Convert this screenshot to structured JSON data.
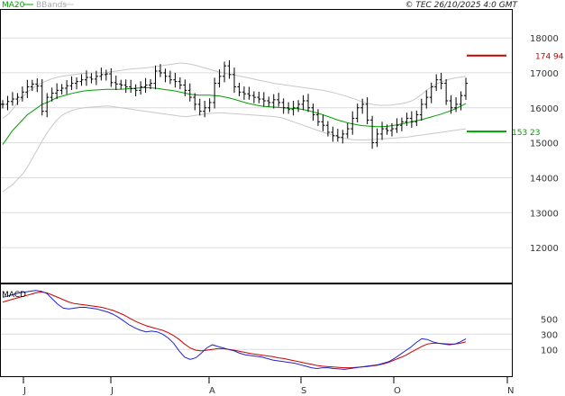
{
  "header": {
    "legend_ma": "MA20",
    "legend_bb": "BBands",
    "copyright": "© TEC 26/10/2025 4:0 GMT"
  },
  "colors": {
    "ma": "#00a000",
    "bbands": "#c8c8c8",
    "bars": "#000000",
    "grid": "#dcdcdc",
    "tag_high": "#cc0000",
    "tag_low": "#00a000",
    "macd_line": "#2222cc",
    "signal_line": "#cc0000"
  },
  "chart_data": [
    {
      "type": "line",
      "title": "",
      "xlabel": "",
      "ylabel": "",
      "x_tick_labels": [
        "J",
        "J",
        "A",
        "S",
        "O",
        "N"
      ],
      "y_ticks": [
        12000,
        13000,
        14000,
        15000,
        16000,
        17000,
        18000
      ],
      "y_tick_labels": [
        "12000",
        "13000",
        "14000",
        "15000",
        "16000",
        "17000",
        "18000"
      ],
      "ylim": [
        11000,
        18800
      ],
      "grid": true,
      "price_tags": [
        {
          "name": "high",
          "value": 17494,
          "label": "174 94"
        },
        {
          "name": "low",
          "value": 15323,
          "label": "153 23"
        }
      ],
      "series": [
        {
          "name": "MA20",
          "values": [
            14950,
            15150,
            15350,
            15500,
            15650,
            15800,
            15900,
            16000,
            16100,
            16150,
            16220,
            16290,
            16330,
            16370,
            16410,
            16440,
            16470,
            16490,
            16500,
            16510,
            16520,
            16530,
            16530,
            16530,
            16530,
            16540,
            16550,
            16560,
            16570,
            16580,
            16570,
            16560,
            16540,
            16520,
            16500,
            16480,
            16450,
            16420,
            16390,
            16370,
            16360,
            16360,
            16360,
            16350,
            16340,
            16310,
            16280,
            16240,
            16200,
            16160,
            16120,
            16090,
            16060,
            16040,
            16030,
            16020,
            16010,
            16000,
            15990,
            15980,
            15970,
            15950,
            15920,
            15880,
            15840,
            15800,
            15750,
            15700,
            15650,
            15610,
            15570,
            15540,
            15510,
            15490,
            15480,
            15470,
            15460,
            15460,
            15470,
            15490,
            15510,
            15540,
            15570,
            15600,
            15630,
            15660,
            15700,
            15740,
            15780,
            15820,
            15870,
            15920,
            15980,
            16050,
            16120
          ]
        },
        {
          "name": "BBands upper",
          "values": [
            15700,
            15800,
            15950,
            16150,
            16300,
            16450,
            16550,
            16650,
            16720,
            16780,
            16830,
            16870,
            16900,
            16920,
            16940,
            16960,
            16980,
            16990,
            17000,
            17000,
            17000,
            17010,
            17030,
            17050,
            17070,
            17090,
            17110,
            17120,
            17130,
            17140,
            17160,
            17180,
            17200,
            17220,
            17240,
            17260,
            17280,
            17270,
            17250,
            17220,
            17180,
            17140,
            17100,
            17060,
            17020,
            16990,
            16960,
            16940,
            16910,
            16880,
            16850,
            16820,
            16790,
            16760,
            16730,
            16700,
            16680,
            16660,
            16640,
            16620,
            16600,
            16580,
            16560,
            16540,
            16520,
            16500,
            16470,
            16440,
            16400,
            16360,
            16320,
            16270,
            16220,
            16170,
            16130,
            16100,
            16080,
            16070,
            16070,
            16080,
            16100,
            16120,
            16150,
            16200,
            16280,
            16380,
            16500,
            16600,
            16680,
            16740,
            16790,
            16830,
            16860,
            16880,
            16900
          ]
        },
        {
          "name": "BBands lower",
          "values": [
            13600,
            13700,
            13800,
            13950,
            14100,
            14300,
            14550,
            14800,
            15050,
            15280,
            15480,
            15650,
            15780,
            15860,
            15920,
            15960,
            15990,
            16010,
            16020,
            16030,
            16040,
            16050,
            16040,
            16020,
            16000,
            15980,
            15960,
            15940,
            15920,
            15900,
            15880,
            15860,
            15840,
            15820,
            15800,
            15780,
            15760,
            15750,
            15760,
            15780,
            15800,
            15820,
            15840,
            15850,
            15860,
            15850,
            15840,
            15830,
            15820,
            15810,
            15800,
            15790,
            15780,
            15770,
            15760,
            15750,
            15730,
            15700,
            15650,
            15600,
            15550,
            15500,
            15450,
            15400,
            15350,
            15300,
            15260,
            15220,
            15180,
            15140,
            15110,
            15090,
            15080,
            15080,
            15080,
            15090,
            15100,
            15110,
            15120,
            15130,
            15140,
            15150,
            15160,
            15180,
            15200,
            15220,
            15240,
            15260,
            15280,
            15300,
            15320,
            15340,
            15360,
            15380,
            15400
          ]
        },
        {
          "name": "Price",
          "values": [
            16100,
            16180,
            16250,
            16300,
            16450,
            16600,
            16680,
            16620,
            15900,
            16300,
            16420,
            16500,
            16560,
            16630,
            16700,
            16750,
            16800,
            16870,
            16820,
            16900,
            16950,
            16970,
            16720,
            16680,
            16650,
            16600,
            16550,
            16500,
            16600,
            16650,
            16700,
            17050,
            17000,
            16900,
            16800,
            16750,
            16650,
            16500,
            16300,
            16100,
            15900,
            16000,
            16150,
            16700,
            16900,
            17200,
            16950,
            16600,
            16450,
            16400,
            16350,
            16300,
            16250,
            16200,
            16150,
            16230,
            16150,
            16000,
            15950,
            16000,
            16100,
            16200,
            16000,
            15800,
            15600,
            15500,
            15300,
            15200,
            15150,
            15250,
            15400,
            15700,
            16000,
            16100,
            15650,
            15000,
            15250,
            15400,
            15350,
            15400,
            15500,
            15600,
            15700,
            15600,
            15800,
            16100,
            16300,
            16600,
            16800,
            16700,
            16200,
            16000,
            16100,
            16350,
            16700
          ]
        }
      ]
    },
    {
      "type": "line",
      "title": "MACD",
      "xlabel": "",
      "ylabel": "",
      "y_ticks": [
        100,
        300,
        500
      ],
      "y_tick_labels": [
        "100",
        "300",
        "500"
      ],
      "ylim": [
        -250,
        950
      ],
      "series": [
        {
          "name": "MACD",
          "values": [
            780,
            800,
            820,
            840,
            850,
            860,
            870,
            860,
            830,
            760,
            690,
            640,
            630,
            640,
            650,
            650,
            640,
            630,
            610,
            590,
            560,
            520,
            470,
            420,
            380,
            350,
            330,
            340,
            330,
            300,
            250,
            180,
            80,
            0,
            -30,
            -10,
            50,
            120,
            160,
            140,
            120,
            100,
            80,
            50,
            30,
            20,
            10,
            0,
            -20,
            -40,
            -50,
            -60,
            -70,
            -80,
            -100,
            -120,
            -140,
            -150,
            -140,
            -140,
            -150,
            -155,
            -160,
            -150,
            -140,
            -130,
            -120,
            -110,
            -100,
            -80,
            -60,
            -20,
            30,
            80,
            130,
            190,
            240,
            230,
            200,
            180,
            170,
            160,
            170,
            200,
            240
          ]
        },
        {
          "name": "Signal",
          "values": [
            720,
            740,
            760,
            780,
            800,
            820,
            840,
            850,
            840,
            810,
            780,
            750,
            720,
            700,
            690,
            680,
            670,
            660,
            650,
            630,
            610,
            580,
            550,
            510,
            470,
            440,
            410,
            390,
            370,
            350,
            320,
            280,
            230,
            170,
            120,
            90,
            80,
            90,
            100,
            110,
            110,
            100,
            90,
            75,
            60,
            45,
            35,
            25,
            15,
            5,
            -10,
            -20,
            -35,
            -50,
            -65,
            -80,
            -95,
            -110,
            -120,
            -125,
            -130,
            -135,
            -140,
            -140,
            -135,
            -130,
            -125,
            -115,
            -105,
            -90,
            -70,
            -40,
            -10,
            20,
            60,
            100,
            140,
            170,
            180,
            180,
            175,
            170,
            170,
            180,
            200
          ]
        }
      ]
    }
  ]
}
